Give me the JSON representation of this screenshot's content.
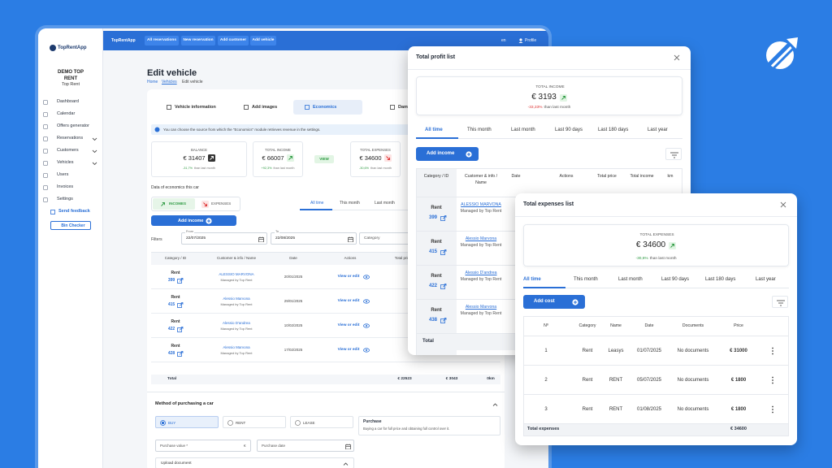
{
  "sidebar": {
    "brand": "TopRentApp",
    "company": "DEMO TOP RENT",
    "company_sub": "Top Rent",
    "menu": [
      "Dashboard",
      "Calendar",
      "Offers generator",
      "Reservations",
      "Customers",
      "Vehicles",
      "Users",
      "Invoices",
      "Settings"
    ],
    "send_feedback": "Send feedback",
    "bin_checker": "Bin Checker"
  },
  "topbar": {
    "buttons": [
      "All reservations",
      "New reservation",
      "Add customer",
      "Add vehicle"
    ],
    "language": "en",
    "profile": "Profile"
  },
  "editor": {
    "title": "Edit vehicle",
    "breadcrumb": [
      "Home",
      "Vehicles",
      "Edit vehicle"
    ],
    "tabs": [
      "Vehicle information",
      "Add images",
      "Economics",
      "Damag"
    ],
    "info": "You can choose the source from which the \"Economics\" module retrieves revenue in the settings.",
    "cards": [
      {
        "label": "BALANCE",
        "value": "€ 31407",
        "change": "-31,7%",
        "note": "than last month"
      },
      {
        "label": "TOTAL INCOME",
        "value": "€ 66007",
        "change": "+92,3%",
        "note": "than last month"
      },
      {
        "label": "TOTAL EXPENSES",
        "value": "€ 34600",
        "change": "-30,6%",
        "note": "than last month"
      }
    ],
    "view": "VIEW",
    "section_label": "Data of economics this car",
    "toggle": [
      "INCOMES",
      "EXPENSES"
    ],
    "periods": [
      "All time",
      "This month",
      "Last month"
    ],
    "add_income": "Add income",
    "filters": "Filters",
    "from_label": "From",
    "from": "22/07/2025",
    "to_label": "To",
    "to": "22/08/2025",
    "category": "Category",
    "columns": [
      "Category / ID",
      "Customer & info / Name",
      "Date",
      "Actions",
      "Total price"
    ],
    "rows": [
      {
        "category": "Rent",
        "id": "399",
        "customer": "ALESSIO MARVONA",
        "managed": "Managed by Top Rent",
        "date": "20/01/2025",
        "action": "View or edit"
      },
      {
        "category": "Rent",
        "id": "415",
        "customer": "Alessio Marvona",
        "managed": "Managed by Top Rent",
        "date": "29/01/2025",
        "action": "View or edit"
      },
      {
        "category": "Rent",
        "id": "422",
        "customer": "Alessio D'andrea",
        "managed": "Managed by Top Rent",
        "date": "10/02/2025",
        "action": "View or edit"
      },
      {
        "category": "Rent",
        "id": "428",
        "customer": "Alessio Marvona",
        "managed": "Managed by Top Rent",
        "date": "17/02/2025",
        "action": "View or edit"
      }
    ],
    "total_label": "Total",
    "totals": [
      "€ 22523",
      "€ 3043",
      "0km"
    ],
    "method_title": "Method of purchasing a car",
    "options": [
      "BUY",
      "RENT",
      "LEASE"
    ],
    "purchase_title": "Purchase",
    "purchase_desc": "Buying a car for full price and obtaining full control over it.",
    "purchase_value": "Purchase value *",
    "currency": "€",
    "purchase_date": "Purchase date",
    "upload": "Upload document"
  },
  "profit_modal": {
    "title": "Total profit list",
    "card": {
      "label": "TOTAL INCOME",
      "value": "€ 3193",
      "change": "-33,33%",
      "note": "than last month"
    },
    "tabs": [
      "All time",
      "This month",
      "Last month",
      "Last 90 days",
      "Last 180 days",
      "Last year"
    ],
    "add": "Add income",
    "columns": [
      "Category / ID",
      "Customer & info / Name",
      "Date",
      "Actions",
      "Total price",
      "Total income",
      "km"
    ],
    "rows": [
      {
        "category": "Rent",
        "id": "399",
        "customer": "ALESSIO MARVONA",
        "managed": "Managed by Top Rent"
      },
      {
        "category": "Rent",
        "id": "415",
        "customer": "Alessio Marvona",
        "managed": "Managed by Top Rent"
      },
      {
        "category": "Rent",
        "id": "422",
        "customer": "Alessio D'andrea",
        "managed": "Managed by Top Rent"
      },
      {
        "category": "Rent",
        "id": "438",
        "customer": "Alessio Marvona",
        "managed": "Managed by Top Rent"
      }
    ],
    "total": "Total"
  },
  "expenses_modal": {
    "title": "Total expenses list",
    "card": {
      "label": "TOTAL EXPENSES",
      "value": "€ 34600",
      "change": "-30,6%",
      "note": "than last month"
    },
    "tabs": [
      "All time",
      "This month",
      "Last month",
      "Last 90 days",
      "Last 180 days",
      "Last year"
    ],
    "add": "Add cost",
    "columns": [
      "Nº",
      "Category",
      "Name",
      "Date",
      "Documents",
      "Price"
    ],
    "rows": [
      [
        "1",
        "Rent",
        "Leasys",
        "01/07/2025",
        "No documents",
        "€ 31000"
      ],
      [
        "2",
        "Rent",
        "RENT",
        "05/07/2025",
        "No documents",
        "€ 1800"
      ],
      [
        "3",
        "Rent",
        "RENT",
        "01/08/2025",
        "No documents",
        "€ 1800"
      ]
    ],
    "total_label": "Total expenses",
    "total": "€ 34600"
  }
}
